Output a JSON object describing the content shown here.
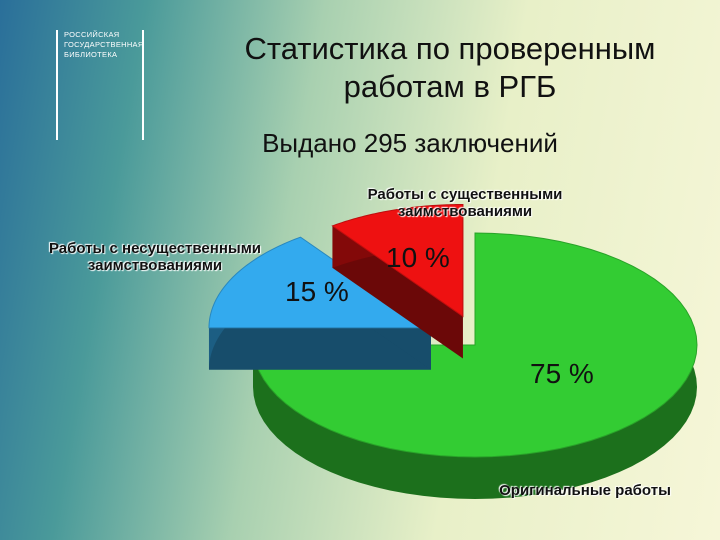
{
  "logo": {
    "lines": [
      "РОССИЙСКАЯ",
      "ГОСУДАРСТВЕННАЯ",
      "БИБЛИОТЕКА"
    ]
  },
  "chart_data": {
    "type": "pie",
    "title": "Статистика по проверенным работам в РГБ",
    "subtitle": "Выдано 295 заключений",
    "categories": [
      "Оригинальные работы",
      "Работы с несущественными заимствованиями",
      "Работы с существенными заимствованиями"
    ],
    "values": [
      75,
      15,
      10
    ],
    "value_labels": [
      "75 %",
      "15 %",
      "10 %"
    ],
    "colors": [
      "#33cc33",
      "#33aaee",
      "#ee1111"
    ]
  }
}
